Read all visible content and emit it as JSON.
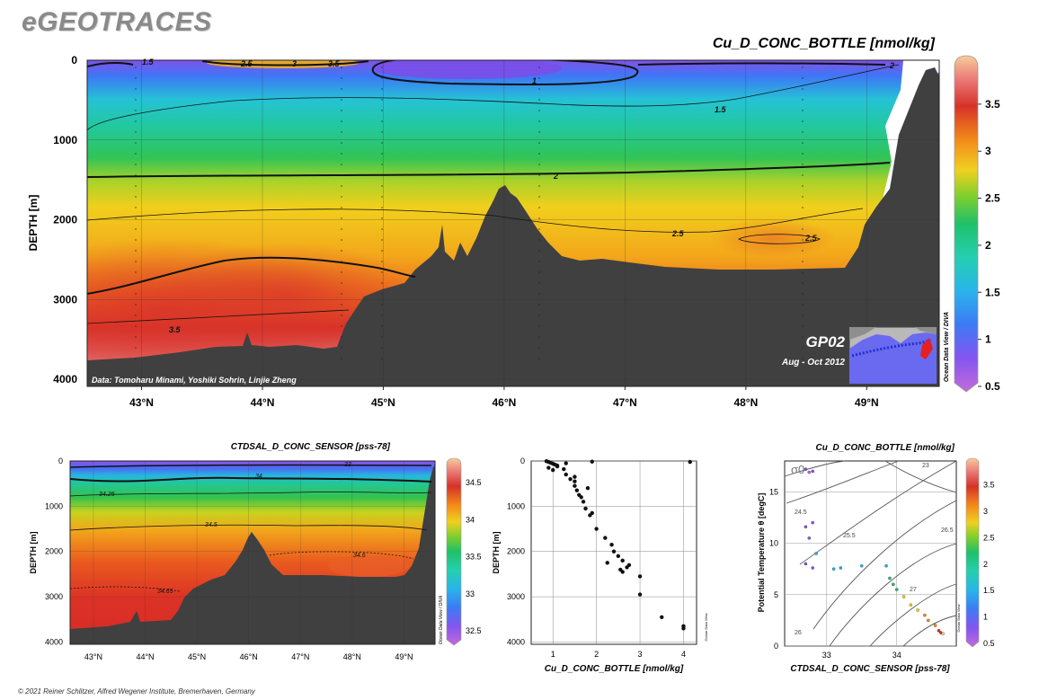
{
  "brand": "eGEOTRACES",
  "footer": "© 2021 Reiner Schlitzer, Alfred Wegener Institute, Bremerhaven, Germany",
  "chart_data": [
    {
      "id": "main",
      "type": "heatmap",
      "title": "Cu_D_CONC_BOTTLE [nmol/kg]",
      "ylabel": "DEPTH [m]",
      "x_ticks": [
        "43°N",
        "44°N",
        "45°N",
        "46°N",
        "47°N",
        "48°N",
        "49°N"
      ],
      "y_ticks": [
        "0",
        "1000",
        "2000",
        "3000",
        "4000"
      ],
      "colorbar_ticks": [
        "3.5",
        "3",
        "2.5",
        "2",
        "1.5",
        "1",
        "0.5"
      ],
      "colorbar_label": "Ocean Data View / DIVA",
      "contour_labels": [
        "1",
        "1.5",
        "2",
        "2.5",
        "2.5",
        "3.5",
        "2",
        "1.5",
        "2.5",
        "3",
        "3.5"
      ],
      "xlim": [
        42.55,
        49.6
      ],
      "ylim": [
        0,
        4000
      ],
      "credit": "Data: Tomoharu Minami, Yoshiki Sohrin, Linjie Zheng",
      "section": "GP02",
      "period": "Aug - Oct 2012"
    },
    {
      "id": "sal",
      "type": "heatmap",
      "title": "CTDSAL_D_CONC_SENSOR [pss-78]",
      "ylabel": "DEPTH [m]",
      "x_ticks": [
        "43°N",
        "44°N",
        "45°N",
        "46°N",
        "47°N",
        "48°N",
        "49°N"
      ],
      "y_ticks": [
        "0",
        "1000",
        "2000",
        "3000",
        "4000"
      ],
      "colorbar_ticks": [
        "34.5",
        "34",
        "33.5",
        "33",
        "32.5"
      ],
      "colorbar_label": "Ocean Data View / DIVA",
      "contour_labels": [
        "33",
        "34",
        "34.25",
        "34.5",
        "34.6",
        "34.65"
      ]
    },
    {
      "id": "profile",
      "type": "scatter",
      "xlabel": "Cu_D_CONC_BOTTLE [nmol/kg]",
      "ylabel": "DEPTH [m]",
      "x_ticks": [
        "1",
        "2",
        "3",
        "4"
      ],
      "y_ticks": [
        "0",
        "1000",
        "2000",
        "3000",
        "4000"
      ],
      "xlim": [
        0.5,
        4.3
      ],
      "ylim": [
        0,
        4050
      ],
      "side_label": "Ocean Data View",
      "points": [
        [
          0.85,
          5
        ],
        [
          0.9,
          20
        ],
        [
          0.95,
          40
        ],
        [
          1.0,
          60
        ],
        [
          1.05,
          80
        ],
        [
          1.1,
          100
        ],
        [
          0.9,
          150
        ],
        [
          1.0,
          200
        ],
        [
          1.1,
          120
        ],
        [
          1.3,
          50
        ],
        [
          1.25,
          180
        ],
        [
          1.3,
          300
        ],
        [
          1.4,
          400
        ],
        [
          1.5,
          350
        ],
        [
          1.5,
          450
        ],
        [
          1.5,
          550
        ],
        [
          1.55,
          650
        ],
        [
          1.6,
          750
        ],
        [
          1.65,
          800
        ],
        [
          1.8,
          600
        ],
        [
          1.7,
          900
        ],
        [
          1.75,
          1050
        ],
        [
          1.85,
          1200
        ],
        [
          1.9,
          1150
        ],
        [
          2.0,
          1500
        ],
        [
          2.2,
          1700
        ],
        [
          2.35,
          1850
        ],
        [
          2.4,
          2000
        ],
        [
          2.5,
          2100
        ],
        [
          2.6,
          2200
        ],
        [
          2.55,
          2400
        ],
        [
          2.7,
          2350
        ],
        [
          2.25,
          2250
        ],
        [
          2.6,
          2450
        ],
        [
          2.75,
          2300
        ],
        [
          3.0,
          2550
        ],
        [
          3.0,
          2950
        ],
        [
          3.5,
          3450
        ],
        [
          4.0,
          3650
        ],
        [
          4.0,
          3700
        ],
        [
          4.15,
          20
        ],
        [
          1.9,
          15
        ]
      ]
    },
    {
      "id": "ts",
      "type": "scatter",
      "title": "Cu_D_CONC_BOTTLE [nmol/kg]",
      "xlabel": "CTDSAL_D_CONC_SENSOR [pss-78]",
      "ylabel": "Potential Temperature θ [degC]",
      "x_ticks": [
        "33",
        "34"
      ],
      "y_ticks": [
        "0",
        "5",
        "10",
        "15"
      ],
      "xlim": [
        32.4,
        34.85
      ],
      "ylim": [
        0,
        18
      ],
      "sigma_label": "σ0",
      "isopycnal_labels": [
        "23",
        "24.5",
        "25.5",
        "26.5",
        "26",
        "27"
      ],
      "colorbar_ticks": [
        "3.5",
        "3",
        "2.5",
        "2",
        "1.5",
        "1",
        "0.5"
      ],
      "side_label": "Ocean Data View",
      "points": [
        [
          32.7,
          17.2,
          1.0
        ],
        [
          32.75,
          16.9,
          0.9
        ],
        [
          32.8,
          17.0,
          1.0
        ],
        [
          32.7,
          11.6,
          1.3
        ],
        [
          32.8,
          12.0,
          1.2
        ],
        [
          32.75,
          10.5,
          1.4
        ],
        [
          32.7,
          8.0,
          1.3
        ],
        [
          32.8,
          7.6,
          1.4
        ],
        [
          32.85,
          9.0,
          1.5
        ],
        [
          33.1,
          7.5,
          1.5
        ],
        [
          33.2,
          7.6,
          1.5
        ],
        [
          33.5,
          7.8,
          1.6
        ],
        [
          33.85,
          7.8,
          1.8
        ],
        [
          33.9,
          6.6,
          2.0
        ],
        [
          33.95,
          6.0,
          2.2
        ],
        [
          34.0,
          5.5,
          2.4
        ],
        [
          34.1,
          4.8,
          2.6
        ],
        [
          34.2,
          4.0,
          2.7
        ],
        [
          34.3,
          3.5,
          2.8
        ],
        [
          34.4,
          3.0,
          3.0
        ],
        [
          34.45,
          2.5,
          3.2
        ],
        [
          34.55,
          2.0,
          3.4
        ],
        [
          34.6,
          1.5,
          3.6
        ],
        [
          34.63,
          1.3,
          3.8
        ],
        [
          34.66,
          1.2,
          3.9
        ]
      ]
    }
  ]
}
